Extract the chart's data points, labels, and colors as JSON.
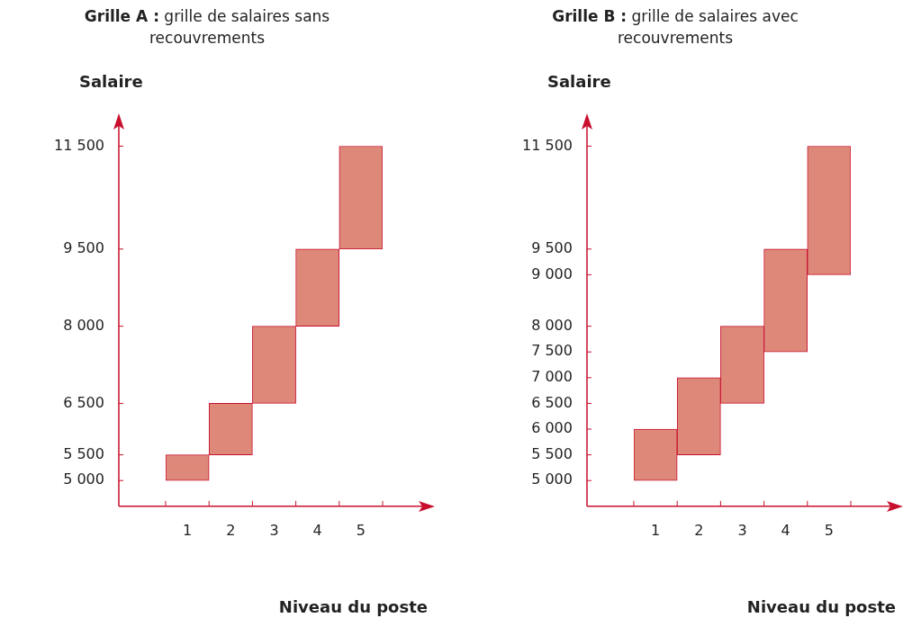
{
  "chart_data": [
    {
      "type": "bar",
      "title": "Grille A : grille de salaires sans recouvrements",
      "xlabel": "Niveau du poste",
      "ylabel": "Salaire",
      "categories": [
        "1",
        "2",
        "3",
        "4",
        "5"
      ],
      "base": [
        5000,
        5500,
        6500,
        8000,
        9500
      ],
      "values": [
        500,
        1000,
        1500,
        1500,
        2000
      ],
      "color": "#de887a",
      "ylim": [
        4500,
        11900
      ],
      "yticks": [
        {
          "value": 5000,
          "label": "5 000"
        },
        {
          "value": 5500,
          "label": "5 500"
        },
        {
          "value": 6500,
          "label": "6 500"
        },
        {
          "value": 8000,
          "label": "8 000"
        },
        {
          "value": 9500,
          "label": "9 500"
        },
        {
          "value": 11500,
          "label": "11 500"
        }
      ]
    },
    {
      "type": "bar",
      "title": "Grille B : grille de salaires avec recouvrements",
      "xlabel": "Niveau du poste",
      "ylabel": "Salaire",
      "categories": [
        "1",
        "2",
        "3",
        "4",
        "5"
      ],
      "base": [
        5000,
        5500,
        6500,
        7500,
        9000
      ],
      "values": [
        1000,
        1500,
        1500,
        2000,
        2500
      ],
      "color": "#de887a",
      "ylim": [
        4500,
        11900
      ],
      "yticks": [
        {
          "value": 5000,
          "label": "5 000"
        },
        {
          "value": 5500,
          "label": "5 500"
        },
        {
          "value": 6000,
          "label": "6 000"
        },
        {
          "value": 6500,
          "label": "6 500"
        },
        {
          "value": 7000,
          "label": "7 000"
        },
        {
          "value": 7500,
          "label": "7 500"
        },
        {
          "value": 8000,
          "label": "8 000"
        },
        {
          "value": 9000,
          "label": "9 000"
        },
        {
          "value": 9500,
          "label": "9 500"
        },
        {
          "value": 11500,
          "label": "11 500"
        }
      ]
    }
  ]
}
